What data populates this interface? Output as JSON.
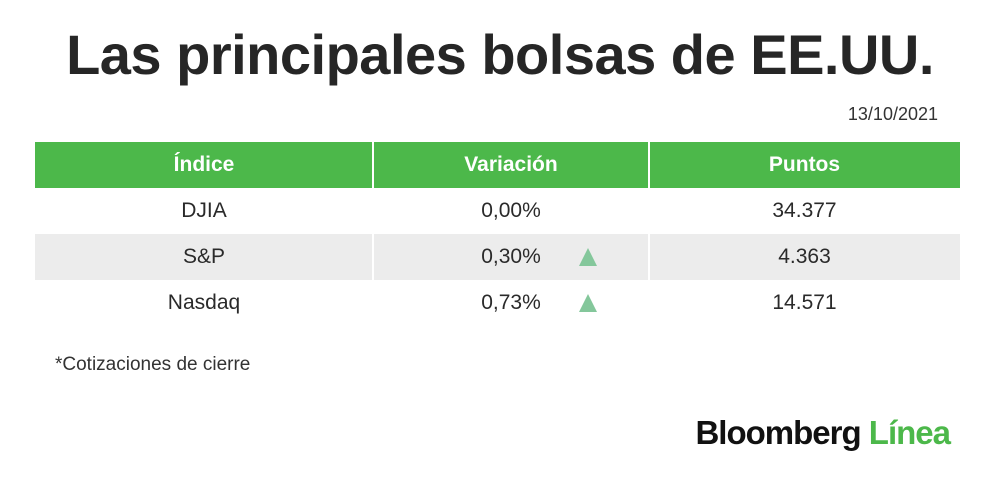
{
  "header": {
    "title": "Las principales bolsas de EE.UU.",
    "date": "13/10/2021"
  },
  "table": {
    "columns": [
      "Índice",
      "Variación",
      "Puntos"
    ],
    "rows": [
      [
        "DJIA",
        "0,00%",
        "34.377"
      ],
      [
        "S&P",
        "0,30%",
        "4.363"
      ],
      [
        "Nasdaq",
        "0,73%",
        "14.571"
      ]
    ]
  },
  "footnote": "*Cotizaciones de cierre",
  "footer": {
    "brand": "Bloomberg",
    "brand_accent": "Línea"
  }
}
